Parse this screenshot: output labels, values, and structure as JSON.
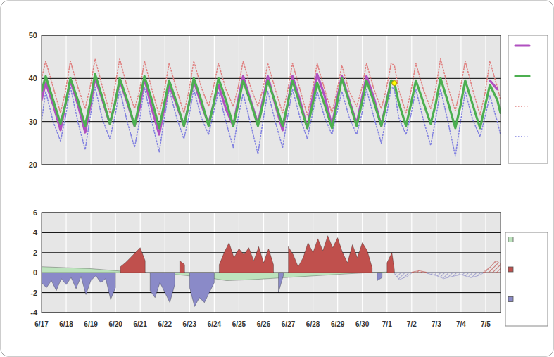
{
  "chart_data": [
    {
      "type": "line",
      "x": [
        0,
        0.17,
        0.47,
        0.77,
        0.97,
        1.17,
        1.47,
        1.77,
        1.97,
        2.17,
        2.47,
        2.77,
        2.97,
        3.17,
        3.47,
        3.77,
        3.97,
        4.17,
        4.47,
        4.77,
        4.97,
        5.17,
        5.47,
        5.77,
        5.97,
        6.17,
        6.47,
        6.77,
        6.97,
        7.17,
        7.47,
        7.77,
        7.97,
        8.17,
        8.47,
        8.77,
        8.97,
        9.17,
        9.47,
        9.77,
        9.97,
        10.17,
        10.47,
        10.77,
        10.97,
        11.17,
        11.47,
        11.77,
        11.97,
        12.17,
        12.47,
        12.77,
        12.97,
        13.17,
        13.47,
        13.77,
        13.97,
        14.17,
        14.3,
        14.47,
        14.77,
        14.97,
        15.17,
        15.47,
        15.77,
        15.97,
        16.17,
        16.47,
        16.77,
        16.97,
        17.17,
        17.47,
        17.77,
        17.97,
        18.17,
        18.47,
        18.6
      ],
      "xlim": [
        0,
        18.6
      ],
      "ylim": [
        20,
        50
      ],
      "xticks": [
        0,
        1,
        2,
        3,
        4,
        5,
        6,
        7,
        8,
        9,
        10,
        11,
        12,
        13,
        14,
        15,
        16,
        17,
        18
      ],
      "yticks": [
        20,
        30,
        40,
        50
      ],
      "grid": true,
      "legend": "right",
      "tick_labels": "y",
      "series": [
        {
          "color": "#b050c0",
          "line_style": "solid",
          "values": [
            35,
            39,
            34,
            28,
            34,
            39.5,
            34,
            27.5,
            33.5,
            40,
            35,
            29.5,
            34,
            39.5,
            34.5,
            29,
            33,
            40,
            33,
            27,
            33,
            38.5,
            34,
            29,
            34,
            39.5,
            34,
            29.5,
            34,
            38.5,
            33,
            29,
            35,
            40.5,
            35,
            29.5,
            35,
            40.5,
            34,
            28,
            34,
            40.5,
            35,
            28.5,
            35,
            41,
            36,
            29,
            35,
            40.5,
            35,
            29.5,
            35,
            40.5,
            35.5,
            29,
            34.5,
            39.5,
            38.9,
            null,
            null,
            null,
            null,
            null,
            null,
            null,
            null,
            null,
            null,
            null,
            null,
            null,
            null,
            null,
            39.5,
            37.5,
            null
          ]
        },
        {
          "color": "#4caf50",
          "line_style": "solid",
          "values": [
            37,
            40.5,
            35,
            29.5,
            34,
            40,
            35,
            29,
            34.5,
            41,
            35.5,
            29.5,
            34,
            40,
            35,
            29,
            34.5,
            40.5,
            35,
            28.5,
            34,
            39.5,
            34.5,
            29,
            34,
            40,
            35,
            29,
            34,
            40,
            35,
            29,
            34,
            39.5,
            34.5,
            29,
            34,
            39.5,
            34.5,
            29,
            34,
            39.5,
            34,
            28.5,
            33.5,
            39,
            34,
            28.5,
            34,
            40,
            34.5,
            29,
            34,
            39.5,
            34.5,
            29,
            34,
            39.5,
            39,
            34.5,
            29,
            34,
            39.5,
            34.5,
            29.5,
            34,
            40,
            34.5,
            28.5,
            33.5,
            39.5,
            34,
            28.5,
            33.5,
            38.5,
            35,
            32
          ]
        },
        {
          "color": "#e08080",
          "line_style": "dotted",
          "values": [
            40,
            44,
            38,
            32,
            37,
            44,
            38,
            33,
            38,
            44.5,
            38,
            32,
            38,
            44.5,
            38,
            33,
            37,
            44,
            37.5,
            31.5,
            37,
            43.5,
            37.5,
            32,
            37,
            44,
            38,
            33.5,
            38,
            43.5,
            37.5,
            33.5,
            38,
            44,
            38,
            33.5,
            37.5,
            43.5,
            37.5,
            32,
            37,
            43.5,
            37.5,
            31.5,
            37,
            43.5,
            37.5,
            32,
            37,
            43,
            37,
            33.5,
            37.5,
            43.5,
            37.5,
            33,
            37.5,
            43.5,
            43,
            37.5,
            32,
            37,
            43.5,
            37.5,
            33,
            37.5,
            44.5,
            38,
            32.5,
            37.5,
            44,
            37.5,
            31.5,
            36.5,
            44,
            38,
            35
          ]
        },
        {
          "color": "#8080e0",
          "line_style": "dotted",
          "values": [
            30,
            37,
            30,
            25.5,
            31,
            38,
            30,
            23.5,
            31,
            38,
            30.5,
            26,
            31,
            37.5,
            30,
            24,
            30,
            38,
            30,
            23,
            30.5,
            37.5,
            31,
            26,
            31,
            37.5,
            31,
            27,
            32,
            37,
            30,
            24,
            31,
            36.5,
            29.5,
            22.5,
            30,
            37,
            30,
            24,
            31,
            37.5,
            31,
            26,
            31.5,
            37,
            31,
            27,
            32,
            37,
            31,
            27,
            31.5,
            37.5,
            31,
            25,
            31,
            38,
            37.5,
            31,
            27,
            31.5,
            37.5,
            30.5,
            24.5,
            30.5,
            37.5,
            30,
            22,
            29.5,
            37,
            30.5,
            26.5,
            31,
            36,
            30,
            27
          ]
        },
        {
          "type": "scatter",
          "marker": "circle",
          "color": "#ffff00",
          "x": [
            14.3
          ],
          "values": [
            38.9
          ]
        }
      ]
    },
    {
      "type": "area",
      "x": [
        0,
        0.2,
        0.4,
        0.6,
        0.8,
        1,
        1.2,
        1.4,
        1.6,
        1.8,
        2,
        2.2,
        2.4,
        2.6,
        2.8,
        3,
        3.2,
        3.4,
        3.6,
        3.8,
        4,
        4.2,
        4.4,
        4.6,
        4.8,
        5,
        5.2,
        5.4,
        5.6,
        5.8,
        6,
        6.2,
        6.4,
        6.6,
        6.8,
        7,
        7.2,
        7.4,
        7.6,
        7.8,
        8,
        8.2,
        8.4,
        8.6,
        8.8,
        9,
        9.2,
        9.4,
        9.6,
        9.8,
        10,
        10.2,
        10.4,
        10.6,
        10.8,
        11,
        11.2,
        11.4,
        11.6,
        11.8,
        12,
        12.2,
        12.4,
        12.6,
        12.8,
        13,
        13.2,
        13.4,
        13.6,
        13.8,
        14,
        14.2,
        14.3
      ],
      "xlim": [
        0,
        18.6
      ],
      "ylim": [
        -4,
        6
      ],
      "xticks": [
        {
          "value": 0,
          "label": "6/17"
        },
        {
          "value": 1,
          "label": "6/18"
        },
        {
          "value": 2,
          "label": "6/19"
        },
        {
          "value": 3,
          "label": "6/20"
        },
        {
          "value": 4,
          "label": "6/21"
        },
        {
          "value": 5,
          "label": "6/22"
        },
        {
          "value": 6,
          "label": "6/23"
        },
        {
          "value": 7,
          "label": "6/24"
        },
        {
          "value": 8,
          "label": "6/25"
        },
        {
          "value": 9,
          "label": "6/26"
        },
        {
          "value": 10,
          "label": "6/27"
        },
        {
          "value": 11,
          "label": "6/28"
        },
        {
          "value": 12,
          "label": "6/29"
        },
        {
          "value": 13,
          "label": "6/30"
        },
        {
          "value": 14,
          "label": "7/1"
        },
        {
          "value": 15,
          "label": "7/2"
        },
        {
          "value": 16,
          "label": "7/3"
        },
        {
          "value": 17,
          "label": "7/4"
        },
        {
          "value": 18,
          "label": "7/5"
        }
      ],
      "yticks": [
        -4,
        -2,
        0,
        2,
        4,
        6
      ],
      "grid": true,
      "legend": "right",
      "series": [
        {
          "color": "#bde3bd",
          "x": [
            0,
            1,
            2,
            3,
            3.5,
            4.5,
            5.5,
            6.5,
            7,
            7.5,
            8.5,
            9.5,
            10.5,
            11.5,
            12.5,
            13.3,
            14.3
          ],
          "values": [
            0.6,
            0.5,
            0.4,
            0.2,
            0.1,
            -0.05,
            -0.2,
            -0.45,
            -0.6,
            -0.8,
            -0.7,
            -0.55,
            -0.4,
            -0.25,
            -0.1,
            0.0,
            0.1
          ]
        },
        {
          "color": "#c0504d",
          "values": [
            null,
            null,
            null,
            null,
            null,
            null,
            null,
            null,
            null,
            null,
            null,
            null,
            null,
            null,
            null,
            null,
            0.6,
            1.0,
            1.5,
            2.0,
            2.5,
            1.2,
            null,
            null,
            null,
            null,
            null,
            null,
            1.2,
            0.8,
            null,
            null,
            null,
            null,
            null,
            null,
            0.8,
            2.0,
            3.0,
            1.5,
            2.4,
            1.8,
            2.5,
            1.2,
            2.6,
            1.0,
            2.4,
            0.8,
            null,
            null,
            2.6,
            1.8,
            0.6,
            1.5,
            3.0,
            2.0,
            3.4,
            2.2,
            3.7,
            2.5,
            3.5,
            2.0,
            1.0,
            2.8,
            1.5,
            3.0,
            2.2,
            0.5,
            null,
            null,
            1.0,
            2.0,
            0.3
          ]
        },
        {
          "color": "#8a8ac8",
          "values": [
            -1.0,
            -1.5,
            -0.8,
            -1.8,
            -0.6,
            -1.2,
            -0.5,
            -1.6,
            -0.4,
            -2.2,
            -0.8,
            -0.3,
            -1.0,
            -0.6,
            -2.7,
            -1.5,
            null,
            null,
            null,
            null,
            null,
            null,
            -1.8,
            -2.5,
            -1.0,
            -2.0,
            -3.0,
            -1.2,
            null,
            null,
            -1.5,
            -3.4,
            -2.5,
            -3.0,
            -2.0,
            -1.0,
            null,
            null,
            null,
            null,
            null,
            null,
            null,
            null,
            null,
            null,
            null,
            null,
            -2.0,
            -0.3,
            null,
            null,
            null,
            null,
            null,
            null,
            null,
            null,
            null,
            null,
            null,
            null,
            null,
            null,
            null,
            null,
            null,
            null,
            -0.8,
            -0.5,
            null,
            null,
            null
          ]
        },
        {
          "color": "#8a8ac8",
          "line_style": "hatched",
          "x": [
            14.3,
            14.5,
            14.8,
            15.0,
            15.3,
            15.6,
            16.0,
            16.3,
            16.6,
            17.0,
            17.4,
            17.7,
            17.9
          ],
          "values": [
            -0.1,
            -0.7,
            -0.4,
            -0.05,
            null,
            -0.05,
            -0.3,
            -0.6,
            -0.4,
            -0.2,
            -0.5,
            -0.3,
            -0.05
          ]
        },
        {
          "color": "#c0504d",
          "line_style": "hatched",
          "x": [
            15.0,
            15.3,
            15.6,
            15.8,
            17.9,
            18.2,
            18.4,
            18.6
          ],
          "values": [
            0.05,
            0.2,
            0.05,
            null,
            0.05,
            0.6,
            1.2,
            0.9
          ]
        }
      ]
    }
  ]
}
